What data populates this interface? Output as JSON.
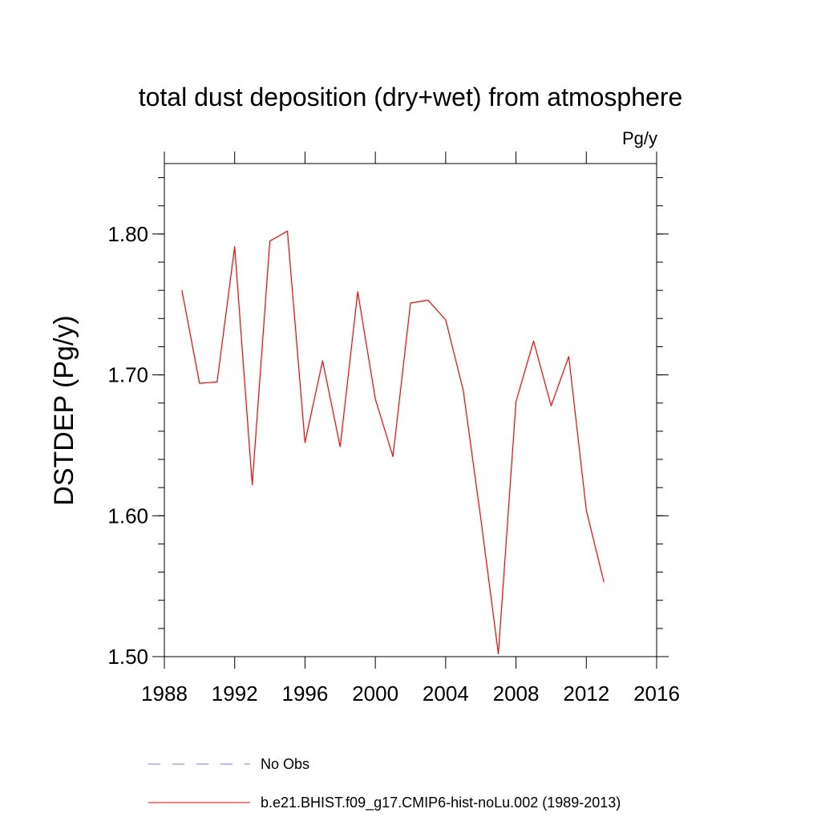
{
  "chart_data": {
    "type": "line",
    "title": "total dust deposition (dry+wet) from atmosphere",
    "units_label": "Pg/y",
    "ylabel": "DSTDEP  (Pg/y)",
    "xlabel": "",
    "xlim": [
      1988,
      2016
    ],
    "ylim": [
      1.5,
      1.85
    ],
    "x_ticks": [
      1988,
      1992,
      1996,
      2000,
      2004,
      2008,
      2012,
      2016
    ],
    "y_ticks": [
      1.5,
      1.6,
      1.7,
      1.8
    ],
    "x_tick_labels": [
      "1988",
      "1992",
      "1996",
      "2000",
      "2004",
      "2008",
      "2012",
      "2016"
    ],
    "y_tick_labels": [
      "1.50",
      "1.60",
      "1.70",
      "1.80"
    ],
    "series": [
      {
        "name": "b.e21.BHIST.f09_g17.CMIP6-hist-noLu.002 (1989-2013)",
        "color": "#ff0000",
        "style": "solid",
        "x": [
          1989,
          1990,
          1991,
          1992,
          1993,
          1994,
          1995,
          1996,
          1997,
          1998,
          1999,
          2000,
          2001,
          2002,
          2003,
          2004,
          2005,
          2006,
          2007,
          2008,
          2009,
          2010,
          2011,
          2012,
          2013
        ],
        "values": [
          1.76,
          1.694,
          1.695,
          1.791,
          1.622,
          1.795,
          1.802,
          1.652,
          1.71,
          1.649,
          1.759,
          1.683,
          1.642,
          1.751,
          1.753,
          1.739,
          1.689,
          1.598,
          1.502,
          1.681,
          1.724,
          1.678,
          1.713,
          1.604,
          1.553
        ]
      }
    ],
    "legend": [
      {
        "label": "No Obs",
        "color": "#7777cc",
        "style": "dashed"
      },
      {
        "label": "b.e21.BHIST.f09_g17.CMIP6-hist-noLu.002 (1989-2013)",
        "color": "#ff0000",
        "style": "solid"
      }
    ],
    "grid": false
  }
}
